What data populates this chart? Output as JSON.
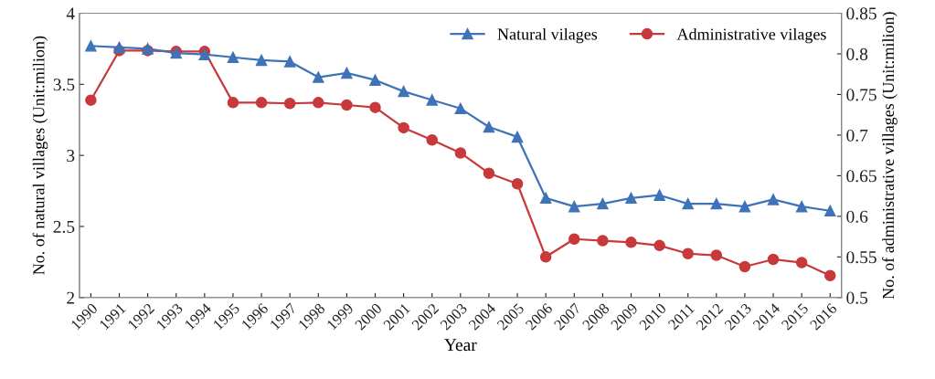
{
  "chart_data": {
    "type": "line",
    "xlabel": "Year",
    "ylabel": "No. of natural villages (Unit:milion)",
    "y2label": "No. of administrative villages (Unit:milion)",
    "categories": [
      "1990",
      "1991",
      "1992",
      "1993",
      "1994",
      "1995",
      "1996",
      "1997",
      "1998",
      "1999",
      "2000",
      "2001",
      "2002",
      "2003",
      "2004",
      "2005",
      "2006",
      "2007",
      "2008",
      "2009",
      "2010",
      "2011",
      "2012",
      "2013",
      "2014",
      "2015",
      "2016"
    ],
    "series": [
      {
        "name": "Natural vilages",
        "color": "#3f73b8",
        "marker": "triangle",
        "values": [
          3.77,
          3.76,
          3.75,
          3.72,
          3.71,
          3.69,
          3.67,
          3.66,
          3.55,
          3.58,
          3.53,
          3.45,
          3.39,
          3.33,
          3.2,
          3.13,
          2.7,
          2.64,
          2.66,
          2.7,
          2.72,
          2.66,
          2.66,
          2.64,
          2.69,
          2.64,
          2.61
        ]
      },
      {
        "name": "Administrative vilages",
        "color": "#c8393b",
        "marker": "circle",
        "axis": "y2",
        "values": [
          0.743,
          0.804,
          0.804,
          0.803,
          0.803,
          0.74,
          0.74,
          0.739,
          0.74,
          0.737,
          0.734,
          0.709,
          0.694,
          0.678,
          0.653,
          0.64,
          0.55,
          0.572,
          0.57,
          0.568,
          0.564,
          0.554,
          0.552,
          0.538,
          0.547,
          0.543,
          0.527
        ]
      }
    ],
    "ylim": [
      2,
      4
    ],
    "yticks": [
      2,
      2.5,
      3,
      3.5,
      4
    ],
    "y2lim": [
      0.5,
      0.85
    ],
    "y2ticks": [
      0.5,
      0.55,
      0.6,
      0.65,
      0.7,
      0.75,
      0.8,
      0.85
    ],
    "legend": "top right",
    "grid": false,
    "line_style": "solid"
  }
}
